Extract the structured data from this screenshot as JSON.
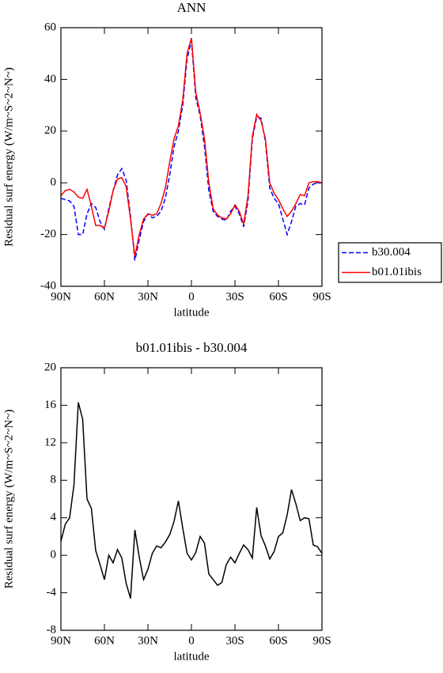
{
  "chart_data": [
    {
      "type": "line",
      "title": "ANN",
      "xlabel": "latitude",
      "ylabel": "Residual surf energy (W/m~S~2~N~)",
      "x": [
        90,
        87,
        84,
        81,
        78,
        75,
        72,
        69,
        66,
        63,
        60,
        57,
        54,
        51,
        48,
        45,
        42,
        39,
        36,
        33,
        30,
        27,
        24,
        21,
        18,
        15,
        12,
        9,
        6,
        3,
        0,
        -3,
        -6,
        -9,
        -12,
        -15,
        -18,
        -21,
        -24,
        -27,
        -30,
        -33,
        -36,
        -39,
        -42,
        -45,
        -48,
        -51,
        -54,
        -57,
        -60,
        -63,
        -66,
        -69,
        -72,
        -75,
        -78,
        -81,
        -84,
        -87,
        -90
      ],
      "series": [
        {
          "name": "b30.004",
          "color": "#0000ff",
          "dashed": true,
          "values": [
            -6,
            -6.5,
            -7,
            -9,
            -20,
            -20,
            -12,
            -8,
            -9.5,
            -15,
            -18,
            -10,
            -3,
            3,
            5.5,
            1,
            -13,
            -30,
            -22,
            -15,
            -12,
            -13.5,
            -13,
            -11,
            -6,
            3,
            14,
            20,
            30,
            48,
            55,
            33,
            26,
            14,
            -3,
            -11,
            -13,
            -14,
            -14.5,
            -11,
            -9,
            -12,
            -17,
            -7,
            17,
            25.5,
            25,
            16,
            -2,
            -6,
            -8,
            -14,
            -20,
            -15,
            -9,
            -8,
            -8.5,
            -2,
            -0.5,
            0,
            0
          ]
        },
        {
          "name": "b01.01ibis",
          "color": "#ff0000",
          "dashed": false,
          "values": [
            -5,
            -3,
            -2.5,
            -3.5,
            -5.5,
            -6,
            -2.5,
            -9,
            -16.5,
            -16.5,
            -17.5,
            -11,
            -3,
            1.5,
            2,
            -1.5,
            -14,
            -28.5,
            -20,
            -14,
            -12,
            -12.5,
            -12,
            -8,
            -2,
            8,
            17,
            22,
            32,
            50,
            56,
            35,
            27,
            17,
            0,
            -10,
            -12.5,
            -13.5,
            -14,
            -12,
            -8.5,
            -11,
            -16,
            -5,
            18,
            26.5,
            24,
            17,
            0,
            -4,
            -6.5,
            -10,
            -13,
            -11,
            -8,
            -4.5,
            -5,
            0,
            0.5,
            0.5,
            0
          ]
        }
      ],
      "xlim": [
        90,
        -90
      ],
      "xticks": [
        {
          "value": 90,
          "label": "90N"
        },
        {
          "value": 60,
          "label": "60N"
        },
        {
          "value": 30,
          "label": "30N"
        },
        0,
        {
          "value": -30,
          "label": "30S"
        },
        {
          "value": -60,
          "label": "60S"
        },
        {
          "value": -90,
          "label": "90S"
        }
      ],
      "ylim": [
        -40,
        60
      ],
      "yticks": [
        -40,
        -20,
        0,
        20,
        40,
        60
      ],
      "legend": "right"
    },
    {
      "type": "line",
      "title": "b01.01ibis - b30.004",
      "xlabel": "latitude",
      "ylabel": "Residual surf energy (W/m~S~2~N~)",
      "x": [
        90,
        87,
        84,
        81,
        78,
        75,
        72,
        69,
        66,
        63,
        60,
        57,
        54,
        51,
        48,
        45,
        42,
        39,
        36,
        33,
        30,
        27,
        24,
        21,
        18,
        15,
        12,
        9,
        6,
        3,
        0,
        -3,
        -6,
        -9,
        -12,
        -15,
        -18,
        -21,
        -24,
        -27,
        -30,
        -33,
        -36,
        -39,
        -42,
        -45,
        -48,
        -51,
        -54,
        -57,
        -60,
        -63,
        -66,
        -69,
        -72,
        -75,
        -78,
        -81,
        -84,
        -87,
        -90
      ],
      "series": [
        {
          "color": "#000000",
          "dashed": false,
          "values": [
            1.5,
            3.3,
            4,
            7.5,
            16.3,
            14.5,
            6,
            5,
            0.5,
            -1,
            -2.6,
            0,
            -0.8,
            0.6,
            -0.3,
            -3,
            -4.6,
            2.7,
            -0.2,
            -2.6,
            -1.5,
            0.2,
            1,
            0.8,
            1.4,
            2.2,
            3.6,
            5.8,
            2.9,
            0.2,
            -0.5,
            0.3,
            2,
            1.3,
            -2,
            -2.6,
            -3.2,
            -2.9,
            -1,
            -0.2,
            -0.8,
            0.2,
            1.1,
            0.6,
            -0.3,
            5.1,
            2.1,
            1,
            -0.4,
            0.4,
            2,
            2.4,
            4.3,
            7,
            5.5,
            3.7,
            4,
            3.9,
            1.1,
            0.9,
            0.2
          ]
        }
      ],
      "xlim": [
        90,
        -90
      ],
      "xticks": [
        {
          "value": 90,
          "label": "90N"
        },
        {
          "value": 60,
          "label": "60N"
        },
        {
          "value": 30,
          "label": "30N"
        },
        0,
        {
          "value": -30,
          "label": "30S"
        },
        {
          "value": -60,
          "label": "60S"
        },
        {
          "value": -90,
          "label": "90S"
        }
      ],
      "ylim": [
        -8,
        20
      ],
      "yticks": [
        -8,
        -4,
        0,
        4,
        8,
        12,
        16,
        20
      ]
    }
  ]
}
